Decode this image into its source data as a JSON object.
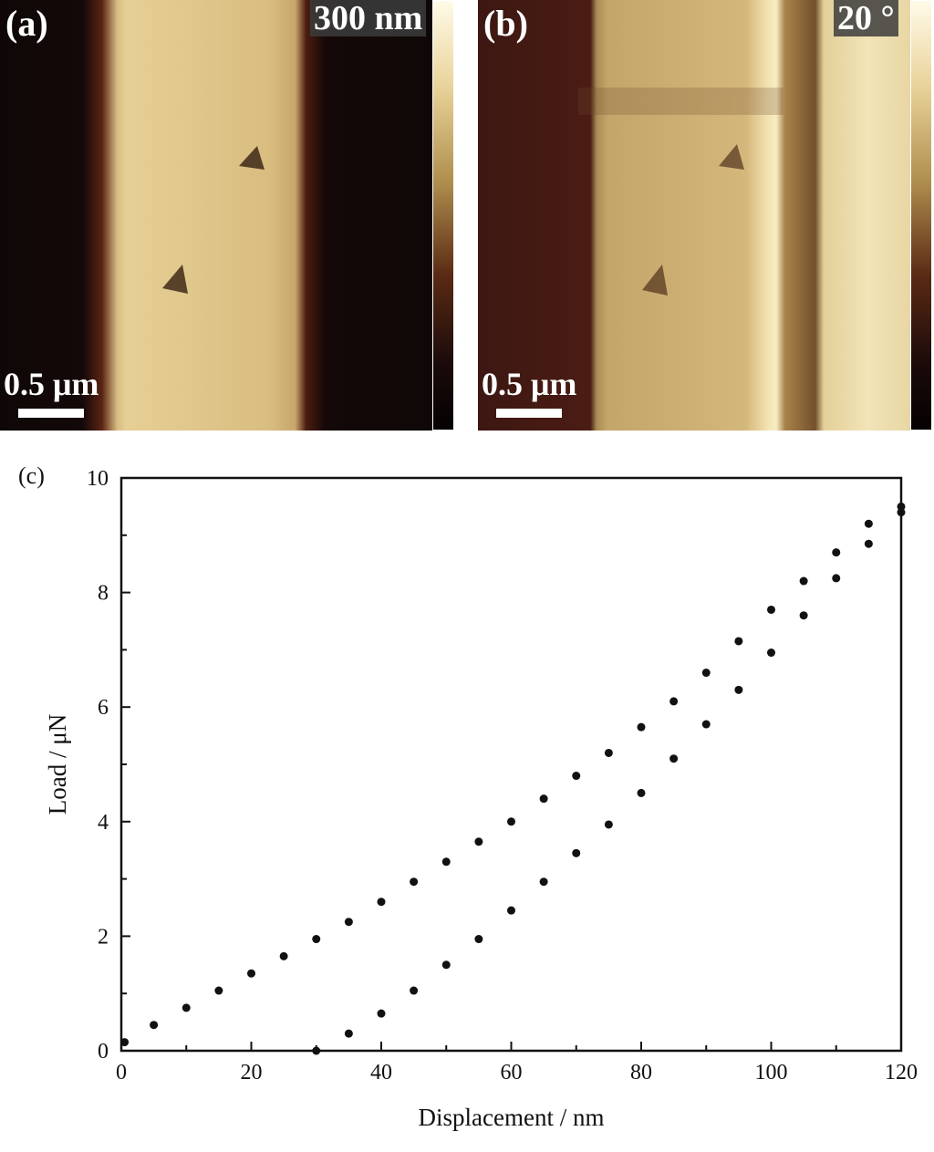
{
  "panels": {
    "a": {
      "label": "(a)",
      "range": "300 nm",
      "scale_bar": "0.5 μm"
    },
    "b": {
      "label": "(b)",
      "range": "20 °",
      "scale_bar": "0.5 μm"
    }
  },
  "chart_data": {
    "type": "scatter",
    "panel_label": "(c)",
    "xlabel": "Displacement / nm",
    "ylabel": "Load / μN",
    "xlim": [
      0,
      120
    ],
    "ylim": [
      0,
      10
    ],
    "xticks": [
      0,
      20,
      40,
      60,
      80,
      100,
      120
    ],
    "yticks": [
      0,
      2,
      4,
      6,
      8,
      10
    ],
    "grid": false,
    "legend": "none",
    "marker_color": "#111111",
    "series": [
      {
        "x": [
          0.5,
          5,
          10,
          15,
          20,
          25,
          30,
          35,
          40,
          45,
          50,
          55,
          60,
          65,
          70,
          75,
          80,
          85,
          90,
          95,
          100,
          105,
          110,
          115,
          120
        ],
        "y": [
          0.15,
          0.45,
          0.75,
          1.05,
          1.35,
          1.65,
          1.95,
          2.25,
          2.6,
          2.95,
          3.3,
          3.65,
          4.0,
          4.4,
          4.8,
          5.2,
          5.65,
          6.1,
          6.6,
          7.15,
          7.7,
          8.2,
          8.7,
          9.2,
          9.5
        ]
      },
      {
        "x": [
          30,
          35,
          40,
          45,
          50,
          55,
          60,
          65,
          70,
          75,
          80,
          85,
          90,
          95,
          100,
          105,
          110,
          115,
          120
        ],
        "y": [
          0.0,
          0.3,
          0.65,
          1.05,
          1.5,
          1.95,
          2.45,
          2.95,
          3.45,
          3.95,
          4.5,
          5.1,
          5.7,
          6.3,
          6.95,
          7.6,
          8.25,
          8.85,
          9.4
        ]
      }
    ]
  }
}
